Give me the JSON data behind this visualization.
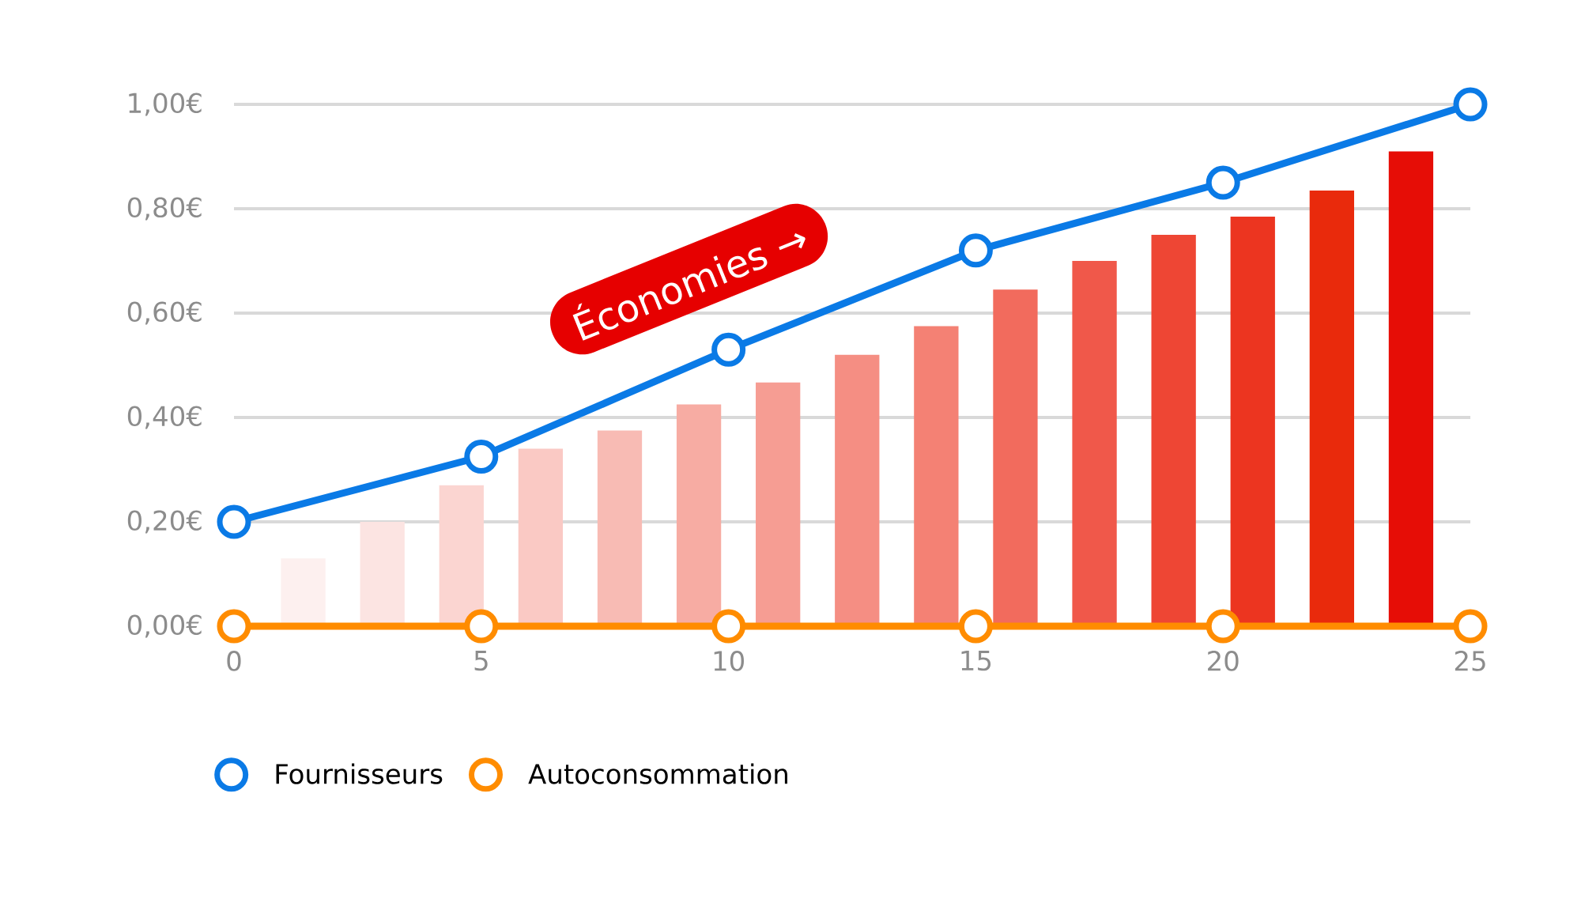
{
  "chart_data": {
    "type": "line",
    "annotations": [
      "Économies →"
    ],
    "xlim": [
      0,
      25
    ],
    "xticks": [
      0,
      5,
      10,
      15,
      20,
      25
    ],
    "ylim": [
      0,
      1
    ],
    "yticks": [
      {
        "value": 0,
        "label": "0,00€"
      },
      {
        "value": 0.2,
        "label": "0,20€"
      },
      {
        "value": 0.4,
        "label": "0,40€"
      },
      {
        "value": 0.6,
        "label": "0,60€"
      },
      {
        "value": 0.8,
        "label": "0,80€"
      },
      {
        "value": 1,
        "label": "1,00€"
      }
    ],
    "grid": "y",
    "legend": "bottom left",
    "marker": "circle",
    "line_style": "solid",
    "series": [
      {
        "type": "bar",
        "x": [
          1.4,
          3.0,
          4.6,
          6.2,
          7.8,
          9.4,
          11.0,
          12.6,
          14.2,
          15.8,
          17.4,
          19.0,
          20.6,
          22.2,
          23.8
        ],
        "values": [
          0.13,
          0.2,
          0.27,
          0.34,
          0.375,
          0.425,
          0.467,
          0.52,
          0.575,
          0.645,
          0.7,
          0.75,
          0.785,
          0.835,
          0.91
        ],
        "colors": [
          "#fdf0ef",
          "#fce4e2",
          "#fbd5d1",
          "#fac9c4",
          "#f8bbb4",
          "#f7aca3",
          "#f69d93",
          "#f58e83",
          "#f48174",
          "#f26b5d",
          "#f0584a",
          "#ee4634",
          "#ec3520",
          "#e92a0c",
          "#e60d06"
        ]
      },
      {
        "name": "Fournisseurs",
        "color": "#0a7ae6",
        "x": [
          0,
          5,
          10,
          15,
          20,
          25
        ],
        "values": [
          0.2,
          0.325,
          0.53,
          0.72,
          0.85,
          1.0
        ]
      },
      {
        "name": "Autoconsommation",
        "color": "#ff8c00",
        "x": [
          0,
          5,
          10,
          15,
          20,
          25
        ],
        "values": [
          0,
          0,
          0,
          0,
          0,
          0
        ]
      }
    ]
  }
}
